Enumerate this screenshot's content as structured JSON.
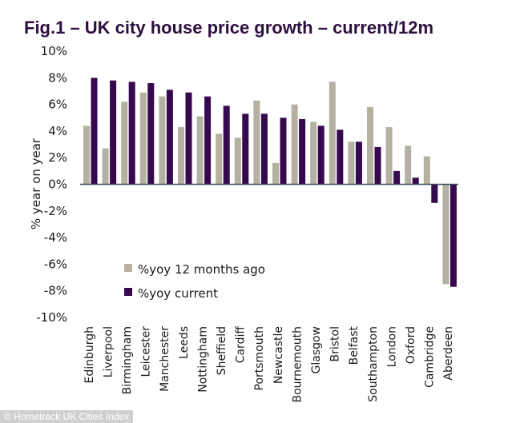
{
  "credit": "© Hometrack UK Cities Index",
  "chart_data": {
    "type": "bar",
    "title": "Fig.1 – UK city house price growth – current/12m",
    "xlabel": "",
    "ylabel": "% year on year",
    "ylim": [
      -10,
      10
    ],
    "ytick_step": 2,
    "yticks": [
      "10%",
      "8%",
      "6%",
      "4%",
      "2%",
      "0%",
      "-2%",
      "-4%",
      "-6%",
      "-8%",
      "-10%"
    ],
    "grid": false,
    "legend_position": "lower-left-center",
    "categories": [
      "Edinburgh",
      "Liverpool",
      "Birmingham",
      "Leicester",
      "Manchester",
      "Leeds",
      "Nottingham",
      "Sheffield",
      "Cardiff",
      "Portsmouth",
      "Newcastle",
      "Bournemouth",
      "Glasgow",
      "Bristol",
      "Belfast",
      "Southampton",
      "London",
      "Oxford",
      "Cambridge",
      "Aberdeen"
    ],
    "series": [
      {
        "name": "%yoy 12 months ago",
        "color": "#b5b1a2",
        "values": [
          4.4,
          2.7,
          6.2,
          6.9,
          6.6,
          4.3,
          5.1,
          3.8,
          3.5,
          6.3,
          1.6,
          6.0,
          4.7,
          7.7,
          3.2,
          5.8,
          4.3,
          2.9,
          2.1,
          -7.5
        ]
      },
      {
        "name": "%yoy current",
        "color": "#36094f",
        "values": [
          8.0,
          7.8,
          7.7,
          7.6,
          7.1,
          6.9,
          6.6,
          5.9,
          5.3,
          5.3,
          5.0,
          4.9,
          4.4,
          4.1,
          3.2,
          2.8,
          1.0,
          0.5,
          -1.4,
          -7.7
        ]
      }
    ],
    "axis_color": "#3b4a5c"
  }
}
